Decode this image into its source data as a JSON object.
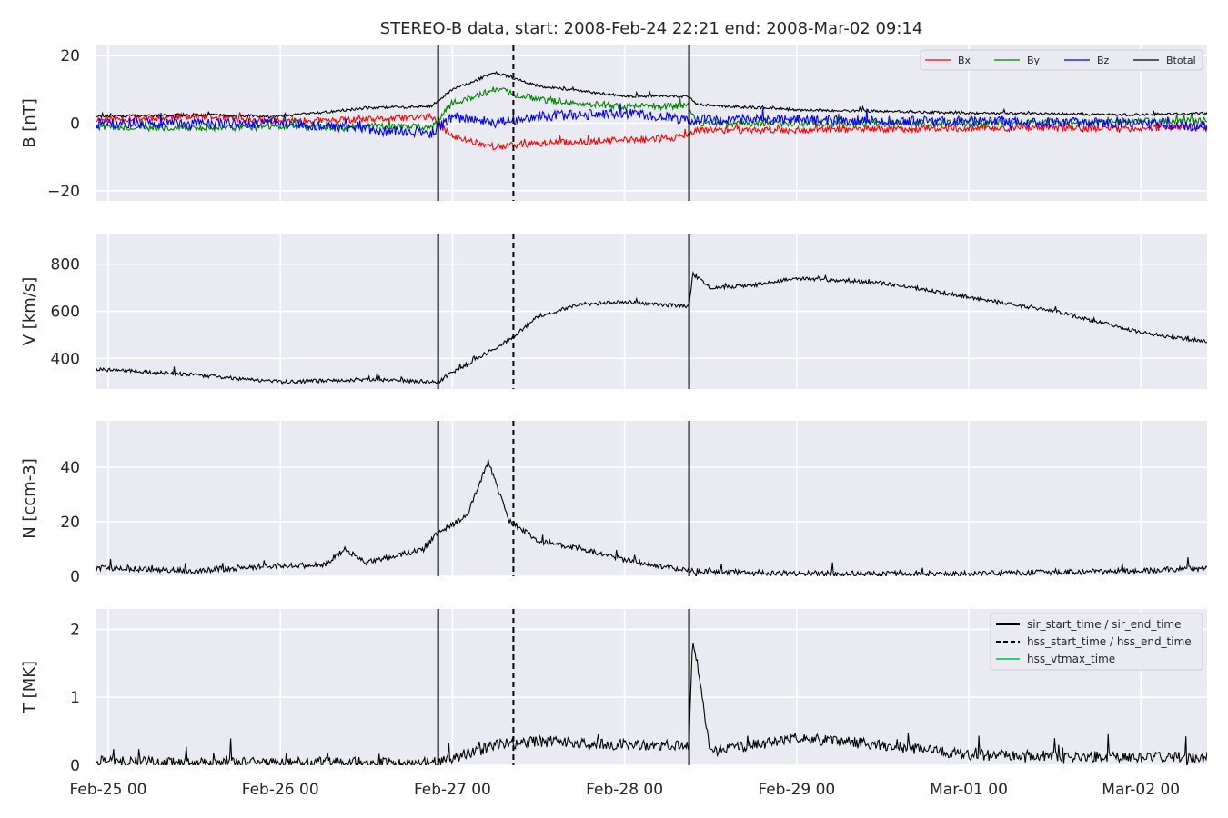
{
  "chart_data": {
    "type": "line",
    "title": "STEREO-B data, start: 2008-Feb-24 22:21  end: 2008-Mar-02 09:14",
    "time_range": [
      "2008-02-24T22:21",
      "2008-03-02T09:14"
    ],
    "x_ticks": [
      "Feb-25 00",
      "Feb-26 00",
      "Feb-27 00",
      "Feb-28 00",
      "Feb-29 00",
      "Mar-01 00",
      "Mar-02 00"
    ],
    "grid": true,
    "event_lines": [
      {
        "time": "2008-02-26T22:00",
        "style": "solid"
      },
      {
        "time": "2008-02-27T08:30",
        "style": "dashed"
      },
      {
        "time": "2008-02-28T09:00",
        "style": "solid"
      }
    ],
    "panels": [
      {
        "ylabel": "B [nT]",
        "ylim": [
          -23,
          23
        ],
        "yticks": [
          -20,
          0,
          20
        ],
        "legend": {
          "placement": "top-right",
          "entries": [
            "Bx",
            "By",
            "Bz",
            "Btotal"
          ]
        },
        "series": [
          {
            "name": "Bx",
            "color": "#ff0000",
            "noise": 1.0,
            "points": [
              [
                "2008-02-24T22:21",
                1
              ],
              [
                "2008-02-25T12:00",
                2
              ],
              [
                "2008-02-26T00:00",
                0.5
              ],
              [
                "2008-02-26T12:00",
                1
              ],
              [
                "2008-02-26T21:00",
                2
              ],
              [
                "2008-02-27T00:00",
                -4
              ],
              [
                "2008-02-27T06:00",
                -7
              ],
              [
                "2008-02-27T12:00",
                -6
              ],
              [
                "2008-02-28T00:00",
                -5
              ],
              [
                "2008-02-28T09:00",
                -4
              ],
              [
                "2008-02-28T10:00",
                -2
              ],
              [
                "2008-02-29T00:00",
                -2
              ],
              [
                "2008-03-01T00:00",
                -1.5
              ],
              [
                "2008-03-02T00:00",
                -1.5
              ],
              [
                "2008-03-02T09:14",
                -1
              ]
            ]
          },
          {
            "name": "By",
            "color": "#008000",
            "noise": 1.0,
            "points": [
              [
                "2008-02-24T22:21",
                -1
              ],
              [
                "2008-02-25T12:00",
                -1.5
              ],
              [
                "2008-02-26T00:00",
                -1
              ],
              [
                "2008-02-26T12:00",
                -1
              ],
              [
                "2008-02-26T21:00",
                -1
              ],
              [
                "2008-02-27T00:00",
                6
              ],
              [
                "2008-02-27T06:00",
                10
              ],
              [
                "2008-02-27T12:00",
                7
              ],
              [
                "2008-02-28T00:00",
                5
              ],
              [
                "2008-02-28T09:00",
                5
              ],
              [
                "2008-02-28T10:00",
                0
              ],
              [
                "2008-02-29T00:00",
                0
              ],
              [
                "2008-03-01T00:00",
                0
              ],
              [
                "2008-03-02T00:00",
                0.5
              ],
              [
                "2008-03-02T09:14",
                1
              ]
            ]
          },
          {
            "name": "Bz",
            "color": "#0000ff",
            "noise": 1.5,
            "points": [
              [
                "2008-02-24T22:21",
                0
              ],
              [
                "2008-02-25T12:00",
                0
              ],
              [
                "2008-02-26T00:00",
                0
              ],
              [
                "2008-02-26T12:00",
                -2
              ],
              [
                "2008-02-26T21:00",
                -3
              ],
              [
                "2008-02-27T00:00",
                2
              ],
              [
                "2008-02-27T06:00",
                0
              ],
              [
                "2008-02-27T12:00",
                2
              ],
              [
                "2008-02-28T00:00",
                3
              ],
              [
                "2008-02-28T09:00",
                1
              ],
              [
                "2008-02-28T10:00",
                1
              ],
              [
                "2008-02-29T00:00",
                1
              ],
              [
                "2008-03-01T00:00",
                0.5
              ],
              [
                "2008-03-02T00:00",
                0
              ],
              [
                "2008-03-02T09:14",
                -1
              ]
            ]
          },
          {
            "name": "Btotal",
            "color": "#000000",
            "noise": 0.4,
            "points": [
              [
                "2008-02-24T22:21",
                2
              ],
              [
                "2008-02-25T12:00",
                2.5
              ],
              [
                "2008-02-26T00:00",
                2
              ],
              [
                "2008-02-26T12:00",
                4.5
              ],
              [
                "2008-02-26T21:00",
                5
              ],
              [
                "2008-02-27T00:00",
                10
              ],
              [
                "2008-02-27T06:00",
                15
              ],
              [
                "2008-02-27T12:00",
                11
              ],
              [
                "2008-02-28T00:00",
                8
              ],
              [
                "2008-02-28T09:00",
                8
              ],
              [
                "2008-02-28T10:00",
                5.5
              ],
              [
                "2008-02-29T00:00",
                4
              ],
              [
                "2008-03-01T00:00",
                3
              ],
              [
                "2008-03-02T00:00",
                2.5
              ],
              [
                "2008-03-02T09:14",
                3
              ]
            ]
          }
        ]
      },
      {
        "ylabel": "V [km/s]",
        "ylim": [
          270,
          930
        ],
        "yticks": [
          400,
          600,
          800
        ],
        "series": [
          {
            "name": "V",
            "color": "#000000",
            "noise": 8,
            "points": [
              [
                "2008-02-24T22:21",
                355
              ],
              [
                "2008-02-25T12:00",
                330
              ],
              [
                "2008-02-26T00:00",
                300
              ],
              [
                "2008-02-26T12:00",
                310
              ],
              [
                "2008-02-26T22:00",
                300
              ],
              [
                "2008-02-27T00:00",
                340
              ],
              [
                "2008-02-27T08:00",
                480
              ],
              [
                "2008-02-27T12:00",
                580
              ],
              [
                "2008-02-27T18:00",
                630
              ],
              [
                "2008-02-28T00:00",
                640
              ],
              [
                "2008-02-28T09:00",
                620
              ],
              [
                "2008-02-28T09:30",
                760
              ],
              [
                "2008-02-28T12:00",
                700
              ],
              [
                "2008-02-28T18:00",
                710
              ],
              [
                "2008-02-29T00:00",
                740
              ],
              [
                "2008-02-29T12:00",
                720
              ],
              [
                "2008-03-01T00:00",
                660
              ],
              [
                "2008-03-01T12:00",
                600
              ],
              [
                "2008-03-02T00:00",
                510
              ],
              [
                "2008-03-02T09:14",
                470
              ]
            ]
          }
        ]
      },
      {
        "ylabel": "N [ccm-3]",
        "ylim": [
          0,
          57
        ],
        "yticks": [
          0,
          20,
          40
        ],
        "series": [
          {
            "name": "N",
            "color": "#000000",
            "noise": 1.0,
            "points": [
              [
                "2008-02-24T22:21",
                3
              ],
              [
                "2008-02-25T12:00",
                2
              ],
              [
                "2008-02-26T00:00",
                4
              ],
              [
                "2008-02-26T06:00",
                4
              ],
              [
                "2008-02-26T09:00",
                10
              ],
              [
                "2008-02-26T12:00",
                5
              ],
              [
                "2008-02-26T20:00",
                10
              ],
              [
                "2008-02-26T22:00",
                16
              ],
              [
                "2008-02-27T02:00",
                22
              ],
              [
                "2008-02-27T05:00",
                42
              ],
              [
                "2008-02-27T08:00",
                20
              ],
              [
                "2008-02-27T12:00",
                13
              ],
              [
                "2008-02-27T18:00",
                10
              ],
              [
                "2008-02-28T00:00",
                6
              ],
              [
                "2008-02-28T09:00",
                2
              ],
              [
                "2008-02-29T00:00",
                1
              ],
              [
                "2008-03-01T00:00",
                1
              ],
              [
                "2008-03-02T00:00",
                2
              ],
              [
                "2008-03-02T09:14",
                3
              ]
            ]
          }
        ]
      },
      {
        "ylabel": "T [MK]",
        "ylim": [
          0,
          2.3
        ],
        "yticks": [
          0,
          1,
          2
        ],
        "legend": {
          "placement": "top-right",
          "entries": [
            "sir_start_time / sir_end_time",
            "hss_start_time / hss_end_time",
            "hss_vtmax_time"
          ]
        },
        "series": [
          {
            "name": "T",
            "color": "#000000",
            "noise": 0.08,
            "points": [
              [
                "2008-02-24T22:21",
                0.06
              ],
              [
                "2008-02-25T12:00",
                0.04
              ],
              [
                "2008-02-26T22:00",
                0.04
              ],
              [
                "2008-02-27T00:00",
                0.1
              ],
              [
                "2008-02-27T06:00",
                0.3
              ],
              [
                "2008-02-27T12:00",
                0.35
              ],
              [
                "2008-02-28T00:00",
                0.3
              ],
              [
                "2008-02-28T09:00",
                0.3
              ],
              [
                "2008-02-28T09:30",
                1.9
              ],
              [
                "2008-02-28T12:00",
                0.2
              ],
              [
                "2008-02-29T00:00",
                0.4
              ],
              [
                "2008-02-29T12:00",
                0.3
              ],
              [
                "2008-03-01T00:00",
                0.15
              ],
              [
                "2008-03-02T00:00",
                0.12
              ],
              [
                "2008-03-02T09:14",
                0.12
              ]
            ]
          }
        ]
      }
    ]
  }
}
